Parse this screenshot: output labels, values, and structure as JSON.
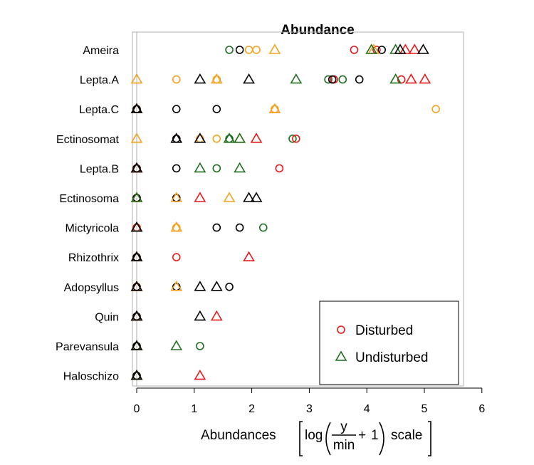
{
  "chart_data": {
    "type": "scatter",
    "title": "Abundance",
    "xlabel": {
      "prefix": "Abundances",
      "log": "log",
      "numerator": "y",
      "denominator": "min",
      "plus": "+",
      "one": "1",
      "suffix": "scale"
    },
    "xlim": [
      -0.1,
      5.7
    ],
    "xticks": [
      0,
      1,
      2,
      3,
      4,
      5,
      6
    ],
    "categories": [
      "Ameira",
      "Lepta.A",
      "Lepta.C",
      "Ectinosomat",
      "Lepta.B",
      "Ectinosoma",
      "Mictyricola",
      "Rhizothrix",
      "Adopsyllus",
      "Quin",
      "Parevansula",
      "Haloschizo"
    ],
    "legend": {
      "placement": "bottom-right",
      "entries": [
        {
          "label": "Disturbed",
          "marker": "circle",
          "color": "#e8191c"
        },
        {
          "label": "Undisturbed",
          "marker": "triangle",
          "color": "#1f6e1f"
        }
      ]
    },
    "colors": {
      "red": "#e8191c",
      "green": "#1f6e1f",
      "orange": "#f5a21f",
      "black": "#000000"
    },
    "series": [
      {
        "marker": "circle",
        "color": "green",
        "points": [
          [
            "Ameira",
            1.61
          ],
          [
            "Lepta.A",
            3.33
          ],
          [
            "Lepta.A",
            3.58
          ],
          [
            "Ectinosomat",
            1.61
          ],
          [
            "Ectinosomat",
            2.71
          ],
          [
            "Lepta.B",
            1.39
          ],
          [
            "Mictyricola",
            2.2
          ],
          [
            "Parevansula",
            1.1
          ],
          [
            "Lepta.C",
            0
          ],
          [
            "Ectinosoma",
            0
          ],
          [
            "Rhizothrix",
            0
          ],
          [
            "Quin",
            0
          ],
          [
            "Haloschizo",
            0
          ]
        ]
      },
      {
        "marker": "circle",
        "color": "orange",
        "points": [
          [
            "Ameira",
            1.95
          ],
          [
            "Ameira",
            2.08
          ],
          [
            "Lepta.A",
            0.69
          ],
          [
            "Lepta.A",
            1.39
          ],
          [
            "Lepta.C",
            2.4
          ],
          [
            "Lepta.C",
            5.2
          ],
          [
            "Ectinosomat",
            1.1
          ],
          [
            "Ectinosomat",
            1.39
          ],
          [
            "Mictyricola",
            0.69
          ],
          [
            "Adopsyllus",
            0
          ],
          [
            "Lepta.B",
            0
          ],
          [
            "Ectinosoma",
            0
          ],
          [
            "Mictyricola",
            0
          ],
          [
            "Rhizothrix",
            0
          ],
          [
            "Quin",
            0
          ],
          [
            "Parevansula",
            0
          ],
          [
            "Haloschizo",
            0
          ]
        ]
      },
      {
        "marker": "circle",
        "color": "red",
        "points": [
          [
            "Ameira",
            3.78
          ],
          [
            "Ameira",
            4.17
          ],
          [
            "Lepta.A",
            3.43
          ],
          [
            "Lepta.A",
            4.6
          ],
          [
            "Ectinosomat",
            0.69
          ],
          [
            "Ectinosomat",
            2.77
          ],
          [
            "Lepta.B",
            2.48
          ],
          [
            "Rhizothrix",
            0.69
          ],
          [
            "Mictyricola",
            0
          ],
          [
            "Lepta.C",
            0
          ],
          [
            "Lepta.B",
            0
          ],
          [
            "Ectinosoma",
            0
          ]
        ]
      },
      {
        "marker": "circle",
        "color": "black",
        "points": [
          [
            "Ameira",
            1.79
          ],
          [
            "Ameira",
            4.26
          ],
          [
            "Lepta.A",
            3.4
          ],
          [
            "Lepta.A",
            3.87
          ],
          [
            "Lepta.C",
            0.69
          ],
          [
            "Lepta.C",
            1.39
          ],
          [
            "Ectinosomat",
            0.69
          ],
          [
            "Lepta.B",
            0.69
          ],
          [
            "Ectinosoma",
            0.69
          ],
          [
            "Mictyricola",
            1.39
          ],
          [
            "Mictyricola",
            1.79
          ],
          [
            "Adopsyllus",
            0.69
          ],
          [
            "Adopsyllus",
            1.61
          ],
          [
            "Lepta.C",
            0
          ],
          [
            "Lepta.B",
            0
          ],
          [
            "Ectinosoma",
            0
          ],
          [
            "Rhizothrix",
            0
          ],
          [
            "Adopsyllus",
            0
          ],
          [
            "Quin",
            0
          ],
          [
            "Parevansula",
            0
          ],
          [
            "Haloschizo",
            0
          ]
        ]
      },
      {
        "marker": "triangle",
        "color": "orange",
        "points": [
          [
            "Ameira",
            2.4
          ],
          [
            "Ameira",
            4.12
          ],
          [
            "Lepta.A",
            0
          ],
          [
            "Lepta.A",
            1.39
          ],
          [
            "Lepta.C",
            2.4
          ],
          [
            "Ectinosomat",
            0
          ],
          [
            "Ectinosomat",
            1.79
          ],
          [
            "Ectinosoma",
            0.69
          ],
          [
            "Ectinosoma",
            1.61
          ],
          [
            "Mictyricola",
            0.69
          ],
          [
            "Adopsyllus",
            0.69
          ],
          [
            "Adopsyllus",
            0
          ],
          [
            "Lepta.B",
            0
          ],
          [
            "Ectinosoma",
            0
          ],
          [
            "Mictyricola",
            0
          ],
          [
            "Quin",
            0
          ],
          [
            "Parevansula",
            0
          ],
          [
            "Haloschizo",
            0
          ]
        ]
      },
      {
        "marker": "triangle",
        "color": "green",
        "points": [
          [
            "Ameira",
            4.08
          ],
          [
            "Ameira",
            4.5
          ],
          [
            "Lepta.A",
            2.77
          ],
          [
            "Lepta.A",
            4.5
          ],
          [
            "Ectinosomat",
            1.61
          ],
          [
            "Ectinosomat",
            1.79
          ],
          [
            "Lepta.B",
            1.1
          ],
          [
            "Lepta.B",
            1.79
          ],
          [
            "Parevansula",
            0.69
          ],
          [
            "Lepta.C",
            0
          ],
          [
            "Ectinosoma",
            0
          ],
          [
            "Mictyricola",
            0
          ],
          [
            "Rhizothrix",
            0
          ],
          [
            "Quin",
            0
          ],
          [
            "Parevansula",
            0
          ],
          [
            "Haloschizo",
            0
          ]
        ]
      },
      {
        "marker": "triangle",
        "color": "red",
        "points": [
          [
            "Ameira",
            4.67
          ],
          [
            "Ameira",
            4.83
          ],
          [
            "Lepta.A",
            4.77
          ],
          [
            "Lepta.A",
            5.01
          ],
          [
            "Ectinosomat",
            2.08
          ],
          [
            "Ectinosoma",
            1.1
          ],
          [
            "Rhizothrix",
            1.95
          ],
          [
            "Quin",
            1.39
          ],
          [
            "Haloschizo",
            1.1
          ],
          [
            "Lepta.C",
            0
          ],
          [
            "Lepta.B",
            0
          ],
          [
            "Rhizothrix",
            0
          ],
          [
            "Adopsyllus",
            0
          ],
          [
            "Quin",
            0
          ]
        ]
      },
      {
        "marker": "triangle",
        "color": "black",
        "points": [
          [
            "Ameira",
            4.58
          ],
          [
            "Ameira",
            4.98
          ],
          [
            "Lepta.A",
            1.1
          ],
          [
            "Lepta.A",
            1.95
          ],
          [
            "Ectinosomat",
            0.69
          ],
          [
            "Ectinosomat",
            1.1
          ],
          [
            "Ectinosoma",
            1.95
          ],
          [
            "Ectinosoma",
            2.08
          ],
          [
            "Adopsyllus",
            1.1
          ],
          [
            "Adopsyllus",
            1.39
          ],
          [
            "Quin",
            1.1
          ],
          [
            "Lepta.C",
            0
          ],
          [
            "Lepta.B",
            0
          ],
          [
            "Mictyricola",
            0
          ],
          [
            "Rhizothrix",
            0
          ],
          [
            "Adopsyllus",
            0
          ],
          [
            "Quin",
            0
          ],
          [
            "Parevansula",
            0
          ],
          [
            "Haloschizo",
            0
          ]
        ]
      }
    ]
  }
}
